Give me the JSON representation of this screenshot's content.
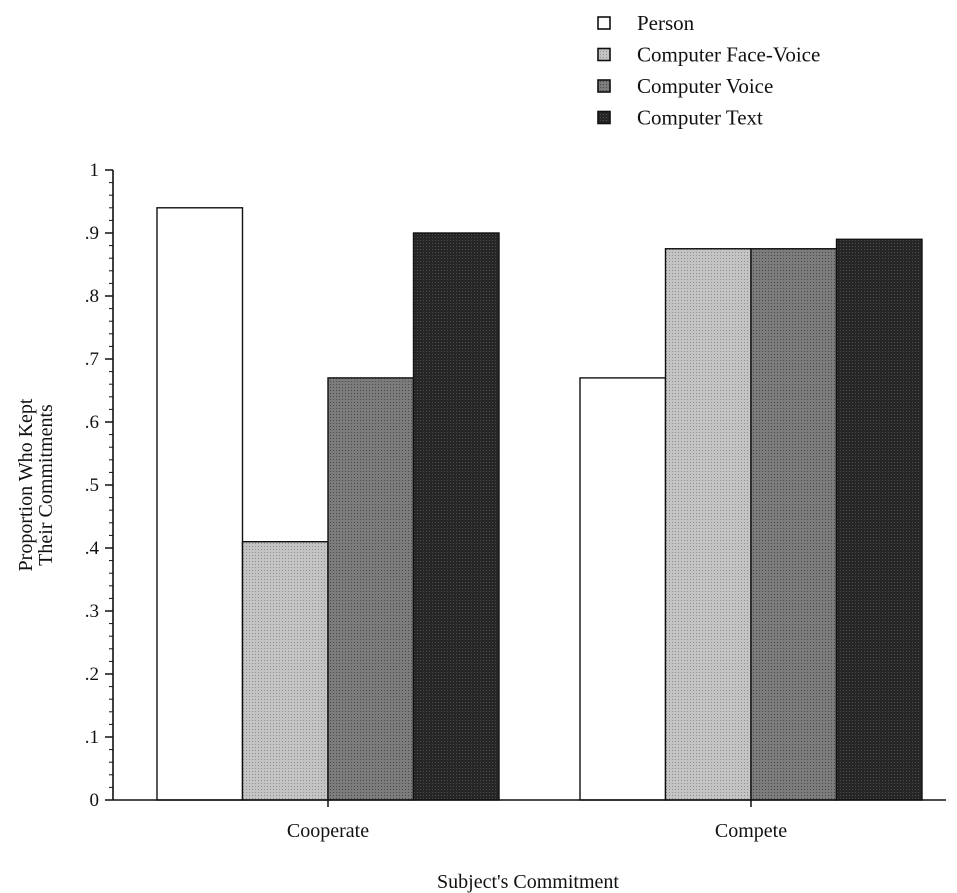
{
  "chart_data": {
    "type": "bar",
    "categories": [
      "Cooperate",
      "Compete"
    ],
    "series": [
      {
        "name": "Person",
        "values": [
          0.94,
          0.67
        ],
        "color": "#ffffff"
      },
      {
        "name": "Computer Face-Voice",
        "values": [
          0.41,
          0.875
        ],
        "color": "#b9b9b9"
      },
      {
        "name": "Computer Voice",
        "values": [
          0.67,
          0.875
        ],
        "color": "#777777"
      },
      {
        "name": "Computer Text",
        "values": [
          0.9,
          0.89
        ],
        "color": "#2a2a2a"
      }
    ],
    "title": "",
    "xlabel": "Subject's Commitment",
    "ylabel": [
      "Proportion Who Kept",
      "Their Commitments"
    ],
    "ylim": [
      0,
      1
    ],
    "yticks": [
      {
        "value": 0,
        "label": "0"
      },
      {
        "value": 0.1,
        "label": ".1"
      },
      {
        "value": 0.2,
        "label": ".2"
      },
      {
        "value": 0.3,
        "label": ".3"
      },
      {
        "value": 0.4,
        "label": ".4"
      },
      {
        "value": 0.5,
        "label": ".5"
      },
      {
        "value": 0.6,
        "label": ".6"
      },
      {
        "value": 0.7,
        "label": ".7"
      },
      {
        "value": 0.8,
        "label": ".8"
      },
      {
        "value": 0.9,
        "label": ".9"
      },
      {
        "value": 1,
        "label": "1"
      }
    ],
    "grid": false,
    "legend_position": "top-right"
  }
}
